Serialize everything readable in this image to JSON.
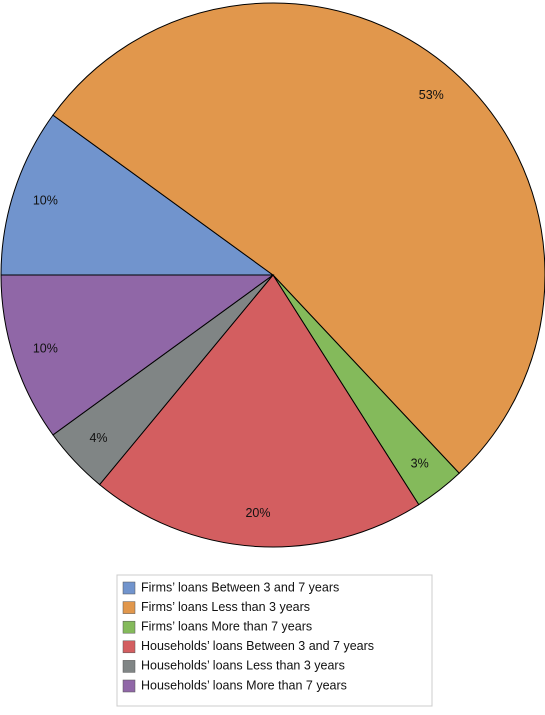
{
  "chart_data": {
    "type": "pie",
    "categories": [
      "Firms’ loans Between 3 and 7 years",
      "Firms’ loans Less than 3 years",
      "Firms’ loans More than 7 years",
      "Households’ loans Between 3 and 7 years",
      "Households’ loans Less than 3 years",
      "Households’ loans More than 7 years"
    ],
    "values": [
      10,
      53,
      3,
      20,
      4,
      10
    ],
    "value_labels": [
      "10%",
      "53%",
      "3%",
      "20%",
      "4%",
      "10%"
    ],
    "colors": [
      "#7194cd",
      "#e1974c",
      "#84ba5b",
      "#d35e60",
      "#808585",
      "#9067a7"
    ],
    "legend": "bottom"
  }
}
